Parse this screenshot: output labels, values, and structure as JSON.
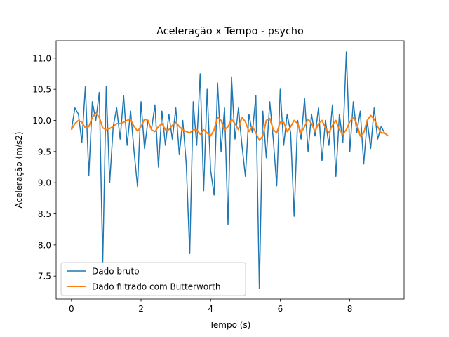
{
  "chart_data": {
    "type": "line",
    "title": "Aceleração x Tempo - psycho",
    "x_label": "Tempo (s)",
    "y_label": "Aceleração (m/s2)",
    "x": [
      0,
      0.1,
      0.2,
      0.3,
      0.4,
      0.5,
      0.6,
      0.7,
      0.8,
      0.9,
      1,
      1.1,
      1.2,
      1.3,
      1.4,
      1.5,
      1.6,
      1.7,
      1.8,
      1.9,
      2,
      2.1,
      2.2,
      2.3,
      2.4,
      2.5,
      2.6,
      2.7,
      2.8,
      2.9,
      3,
      3.1,
      3.2,
      3.3,
      3.4,
      3.5,
      3.6,
      3.7,
      3.8,
      3.9,
      4,
      4.1,
      4.2,
      4.3,
      4.4,
      4.5,
      4.6,
      4.7,
      4.8,
      4.9,
      5,
      5.1,
      5.2,
      5.3,
      5.4,
      5.5,
      5.6,
      5.7,
      5.8,
      5.9,
      6,
      6.1,
      6.2,
      6.3,
      6.4,
      6.5,
      6.6,
      6.7,
      6.8,
      6.9,
      7,
      7.1,
      7.2,
      7.3,
      7.4,
      7.5,
      7.6,
      7.7,
      7.8,
      7.9,
      8,
      8.1,
      8.2,
      8.3,
      8.4,
      8.5,
      8.6,
      8.7,
      8.8,
      8.9,
      9,
      9.1
    ],
    "series": [
      {
        "name": "Dado bruto",
        "color": "#1f77b4",
        "width": 1.5,
        "values": [
          9.85,
          10.2,
          10.1,
          9.65,
          10.55,
          9.12,
          10.3,
          10.0,
          10.45,
          7.72,
          10.55,
          9.0,
          9.9,
          10.2,
          9.7,
          10.4,
          9.6,
          10.15,
          9.5,
          8.93,
          10.3,
          9.55,
          10.0,
          9.85,
          10.25,
          9.25,
          10.15,
          9.6,
          10.1,
          9.7,
          10.2,
          9.45,
          10.0,
          9.3,
          7.86,
          10.3,
          9.6,
          10.75,
          8.87,
          10.5,
          9.2,
          8.8,
          10.6,
          9.5,
          10.2,
          8.33,
          10.7,
          9.7,
          10.2,
          9.6,
          9.1,
          10.1,
          9.8,
          10.4,
          7.3,
          10.15,
          9.4,
          10.3,
          9.7,
          8.95,
          10.5,
          9.6,
          10.1,
          9.8,
          8.46,
          10.0,
          9.7,
          10.35,
          9.5,
          10.1,
          9.75,
          10.2,
          9.35,
          10.0,
          9.6,
          10.25,
          9.1,
          10.1,
          9.65,
          11.1,
          9.5,
          10.3,
          9.8,
          10.15,
          9.3,
          10.0,
          9.55,
          10.2,
          9.7,
          9.9,
          9.8,
          9.75
        ]
      },
      {
        "name": "Dado filtrado com Butterworth",
        "color": "#ff7f0e",
        "width": 2,
        "values": [
          9.85,
          9.95,
          10.0,
          9.97,
          9.88,
          9.9,
          10.05,
          10.12,
          10.05,
          9.88,
          9.85,
          9.87,
          9.9,
          9.95,
          9.95,
          9.97,
          10.0,
          10.02,
          9.9,
          9.83,
          9.9,
          10.02,
          10.0,
          9.85,
          9.82,
          9.9,
          9.95,
          9.85,
          9.85,
          9.92,
          9.97,
          9.9,
          9.85,
          9.82,
          9.8,
          9.85,
          9.85,
          9.78,
          9.85,
          9.8,
          9.75,
          9.85,
          10.05,
          10.0,
          9.85,
          9.9,
          10.02,
          9.95,
          9.85,
          10.05,
          9.98,
          9.82,
          9.9,
          9.8,
          9.68,
          9.75,
          10.0,
          10.03,
          9.85,
          9.8,
          9.97,
          9.97,
          9.82,
          9.9,
          10.0,
          9.95,
          9.8,
          9.9,
          10.02,
          9.95,
          9.82,
          9.95,
          10.0,
          9.88,
          9.8,
          9.92,
          10.0,
          9.85,
          9.78,
          9.85,
          9.98,
          10.05,
          9.95,
          9.75,
          9.8,
          10.0,
          10.08,
          10.02,
          9.9,
          9.8,
          9.8,
          9.75
        ]
      }
    ],
    "xlim": [
      -0.44,
      9.56
    ],
    "ylim": [
      7.13,
      11.28
    ],
    "xticks": [
      0,
      2,
      4,
      6,
      8
    ],
    "yticks": [
      7.5,
      {
        "value": 8,
        "label": "8.0"
      },
      8.5,
      {
        "value": 9,
        "label": "9.0"
      },
      9.5,
      {
        "value": 10,
        "label": "10.0"
      },
      10.5,
      {
        "value": 11,
        "label": "11.0"
      }
    ],
    "legend": "lower left",
    "grid": false
  }
}
